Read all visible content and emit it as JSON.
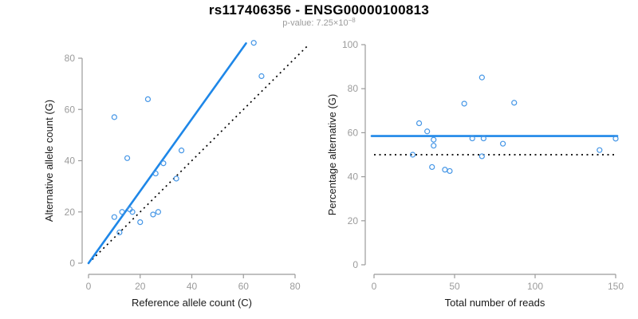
{
  "title": "rs117406356 - ENSG00000100813",
  "subtitle": {
    "prefix": "p-value: 7.25×10",
    "exponent": "−8"
  },
  "colors": {
    "title": "#000000",
    "subtitle": "#9b9b9b",
    "axis_line": "#9b9b9b",
    "tick_label": "#9b9b9b",
    "axis_title": "#1a1a1a",
    "point_stroke": "#4596e6",
    "fit_line": "#1e87e8",
    "reference_line": "#000000"
  },
  "chart_data": [
    {
      "type": "scatter",
      "name": "allele-count-scatter",
      "xlabel": "Reference allele count (C)",
      "ylabel": "Alternative allele count (G)",
      "xlim": [
        0,
        80
      ],
      "ylim": [
        0,
        80
      ],
      "xticks": [
        0,
        20,
        40,
        60,
        80
      ],
      "yticks": [
        0,
        20,
        40,
        60,
        80
      ],
      "grid": false,
      "points": [
        [
          10,
          57
        ],
        [
          23,
          64
        ],
        [
          15,
          41
        ],
        [
          64,
          86
        ],
        [
          67,
          73
        ],
        [
          36,
          44
        ],
        [
          29,
          39
        ],
        [
          26,
          35
        ],
        [
          34,
          33
        ],
        [
          16,
          21
        ],
        [
          13,
          20
        ],
        [
          17,
          20
        ],
        [
          27,
          20
        ],
        [
          25,
          19
        ],
        [
          10,
          18
        ],
        [
          12,
          12
        ],
        [
          20,
          16
        ]
      ],
      "fit_line": {
        "x1": 0,
        "y1": 0,
        "x2": 61,
        "y2": 85.8
      },
      "reference_line": {
        "x1": 0,
        "y1": 0,
        "x2": 85.3,
        "y2": 85.3
      }
    },
    {
      "type": "scatter",
      "name": "percentage-scatter",
      "xlabel": "Total number of reads",
      "ylabel": "Percentage alternative (G)",
      "xlim": [
        0,
        150
      ],
      "ylim": [
        0,
        100
      ],
      "xticks": [
        0,
        50,
        100,
        150
      ],
      "yticks": [
        0,
        20,
        40,
        60,
        80,
        100
      ],
      "grid": false,
      "points": [
        [
          67,
          85.1
        ],
        [
          87,
          73.6
        ],
        [
          56,
          73.2
        ],
        [
          150,
          57.3
        ],
        [
          140,
          52.1
        ],
        [
          80,
          55.0
        ],
        [
          68,
          57.4
        ],
        [
          61,
          57.4
        ],
        [
          67,
          49.3
        ],
        [
          37,
          56.8
        ],
        [
          33,
          60.6
        ],
        [
          37,
          54.1
        ],
        [
          47,
          42.6
        ],
        [
          44,
          43.2
        ],
        [
          28,
          64.3
        ],
        [
          24,
          50.0
        ],
        [
          36,
          44.4
        ]
      ],
      "fit_line": {
        "y": 58.5
      },
      "reference_line": {
        "y": 50
      }
    }
  ]
}
